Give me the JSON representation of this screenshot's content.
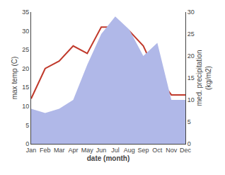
{
  "chart_data": {
    "type": "line",
    "xlabel": "date (month)",
    "ylabel": "max temp (C)",
    "y2label": "med. precipitation\n(kg/m2)",
    "categories": [
      "Jan",
      "Feb",
      "Mar",
      "Apr",
      "May",
      "Jun",
      "Jul",
      "Aug",
      "Sep",
      "Oct",
      "Nov",
      "Dec"
    ],
    "series": [
      {
        "type": "area",
        "axis": "y2",
        "color": "#b0b8e8",
        "values": [
          8,
          7,
          8,
          10,
          18,
          25,
          29,
          26,
          20,
          23,
          10,
          10
        ]
      },
      {
        "type": "line",
        "color": "#c0392b",
        "values": [
          12,
          20,
          22,
          26,
          24,
          31,
          31,
          30,
          26,
          18,
          13,
          13
        ]
      }
    ],
    "ylim": [
      0,
      35
    ],
    "yticks": [
      0,
      5,
      10,
      15,
      20,
      25,
      30,
      35
    ],
    "y2lim": [
      0,
      30
    ],
    "y2ticks": [
      0,
      5,
      10,
      15,
      20,
      25,
      30
    ],
    "grid": false
  }
}
